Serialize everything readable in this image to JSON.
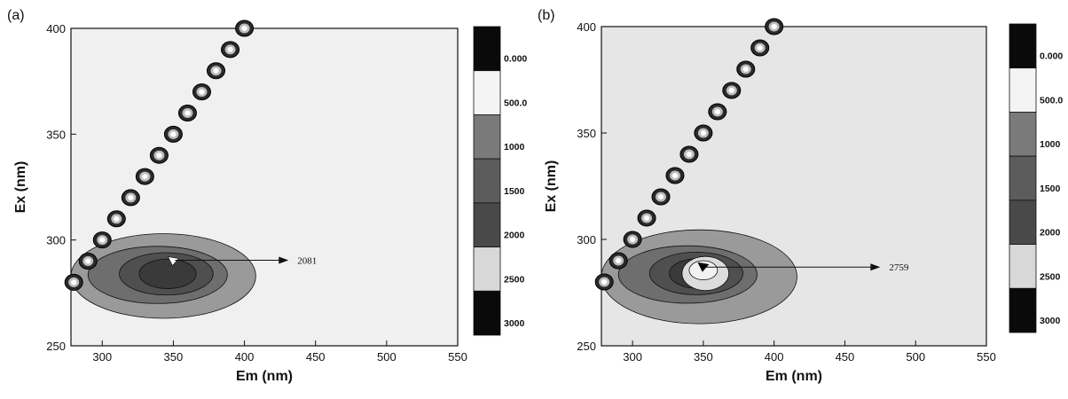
{
  "chart_data": [
    {
      "type": "heatmap",
      "subtype": "contour",
      "panel_label": "(a)",
      "xlabel": "Em (nm)",
      "ylabel": "Ex (nm)",
      "xlim": [
        278,
        550
      ],
      "ylim": [
        250,
        400
      ],
      "xticks": [
        "300",
        "350",
        "400",
        "450",
        "500",
        "550"
      ],
      "yticks": [
        "250",
        "300",
        "350",
        "400"
      ],
      "background_color": "#f0f0f0",
      "peak": {
        "em": 350,
        "ex": 290,
        "value": 2081,
        "annotation": "2081"
      },
      "colorbar": {
        "levels": [
          "0.000",
          "500.0",
          "1000",
          "1500",
          "2000",
          "2500",
          "3000"
        ],
        "colors": [
          "#0a0a0a",
          "#f4f4f4",
          "#7a7a7a",
          "#5c5c5c",
          "#494949",
          "#d8d8d8",
          "#0a0a0a"
        ]
      },
      "scatter_band": [
        280,
        290,
        300,
        310,
        320,
        330,
        340,
        350,
        360,
        370,
        380,
        390,
        400
      ]
    },
    {
      "type": "heatmap",
      "subtype": "contour",
      "panel_label": "(b)",
      "xlabel": "Em (nm)",
      "ylabel": "Ex (nm)",
      "xlim": [
        278,
        550
      ],
      "ylim": [
        250,
        400
      ],
      "xticks": [
        "300",
        "350",
        "400",
        "450",
        "500",
        "550"
      ],
      "yticks": [
        "250",
        "300",
        "350",
        "400"
      ],
      "background_color": "#e6e6e6",
      "peak": {
        "em": 350,
        "ex": 287,
        "value": 2759,
        "annotation": "2759"
      },
      "colorbar": {
        "levels": [
          "0.000",
          "500.0",
          "1000",
          "1500",
          "2000",
          "2500",
          "3000"
        ],
        "colors": [
          "#0a0a0a",
          "#f4f4f4",
          "#7a7a7a",
          "#5c5c5c",
          "#494949",
          "#d8d8d8",
          "#0a0a0a"
        ]
      },
      "scatter_band": [
        280,
        290,
        300,
        310,
        320,
        330,
        340,
        350,
        360,
        370,
        380,
        390,
        400
      ]
    }
  ]
}
